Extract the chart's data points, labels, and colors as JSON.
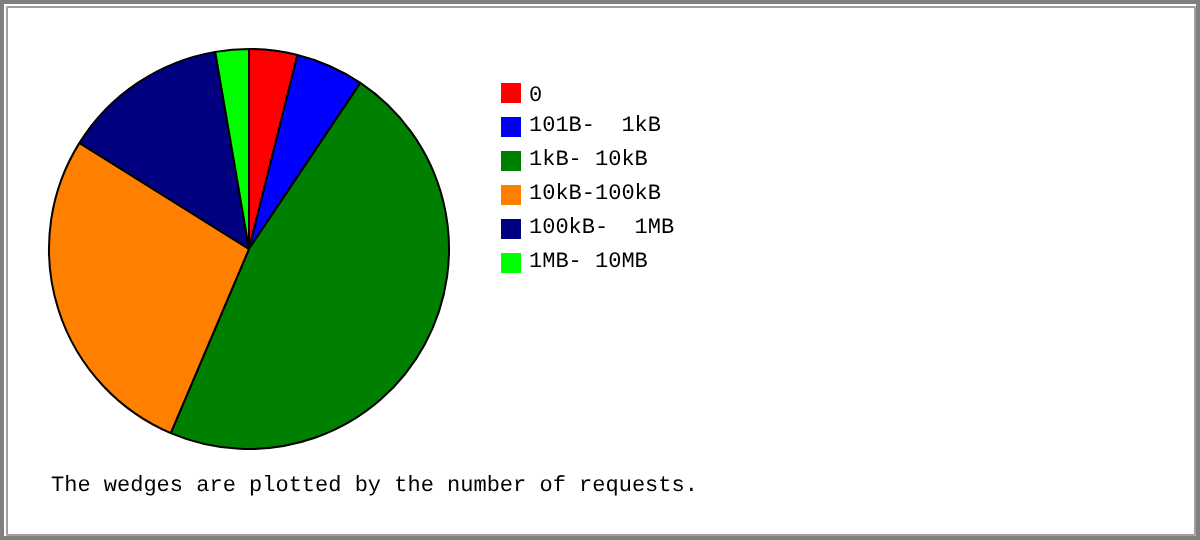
{
  "chart_data": {
    "type": "pie",
    "categories": [
      "0",
      "101B-  1kB",
      "1kB- 10kB",
      "10kB-100kB",
      "100kB-  1MB",
      "1MB- 10MB"
    ],
    "values": [
      3.9,
      5.5,
      47,
      27.5,
      13.4,
      2.7
    ],
    "colors": [
      "#ff0000",
      "#0000ff",
      "#008000",
      "#ff8000",
      "#000080",
      "#00ff00"
    ],
    "legend": "right",
    "annotations": [
      "The wedges are plotted by the number of requests."
    ]
  }
}
